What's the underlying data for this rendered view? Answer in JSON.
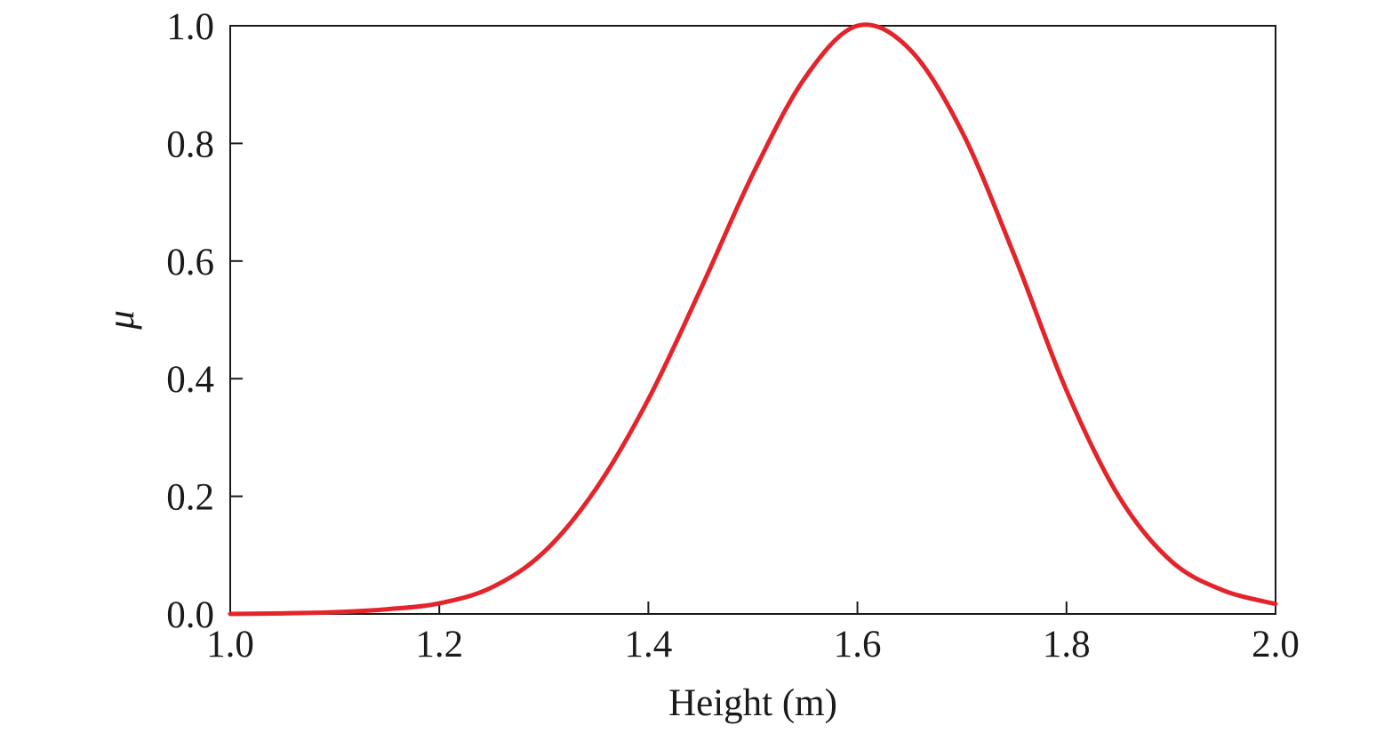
{
  "chart_data": {
    "type": "line",
    "title": "",
    "xlabel": "Height (m)",
    "ylabel": "μ",
    "xlim": [
      1.0,
      2.0
    ],
    "ylim": [
      0.0,
      1.0
    ],
    "xticks": [
      1.0,
      1.2,
      1.4,
      1.6,
      1.8,
      2.0
    ],
    "xtick_labels": [
      "1.0",
      "1.2",
      "1.4",
      "1.6",
      "1.8",
      "2.0"
    ],
    "yticks": [
      0.0,
      0.2,
      0.4,
      0.6,
      0.8,
      1.0
    ],
    "ytick_labels": [
      "0.0",
      "0.2",
      "0.4",
      "0.6",
      "0.8",
      "1.0"
    ],
    "grid": false,
    "legend": "none",
    "series": [
      {
        "color": "#e3242b",
        "x": [
          1.0,
          1.05,
          1.1,
          1.15,
          1.2,
          1.25,
          1.3,
          1.35,
          1.4,
          1.45,
          1.5,
          1.55,
          1.6,
          1.65,
          1.7,
          1.75,
          1.8,
          1.85,
          1.9,
          1.95,
          2.0
        ],
        "y": [
          0.0,
          0.001,
          0.003,
          0.008,
          0.018,
          0.045,
          0.105,
          0.213,
          0.365,
          0.552,
          0.748,
          0.912,
          1.0,
          0.96,
          0.82,
          0.61,
          0.38,
          0.2,
          0.09,
          0.04,
          0.017
        ]
      }
    ]
  }
}
